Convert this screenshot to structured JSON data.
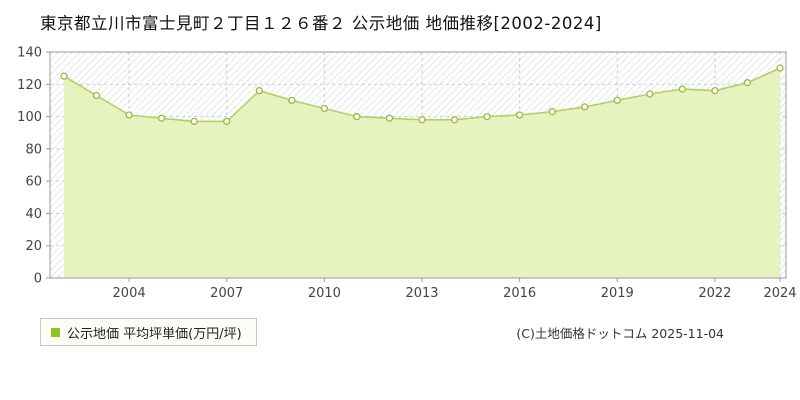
{
  "title": "東京都立川市富士見町２丁目１２６番２ 公示地価 地価推移[2002-2024]",
  "legend": {
    "label": "公示地価 平均坪単価(万円/坪)"
  },
  "footer": {
    "copyright": "(C)土地価格ドットコム 2025-11-04"
  },
  "colors": {
    "area_fill": "#e6f2ba",
    "line": "#b3cf68",
    "marker_fill": "#fffdf0",
    "marker_stroke": "#97ba4b",
    "legend_marker": "#8fc31f",
    "grid": "#cccccc",
    "axis_border": "#999999",
    "hatch": "#e7e7e7",
    "tick_text": "#444444"
  },
  "chart_data": {
    "type": "area",
    "title": "東京都立川市富士見町２丁目１２６番２ 公示地価 地価推移[2002-2024]",
    "xlabel": "",
    "ylabel": "平均坪単価(万円/坪)",
    "ylim": [
      0,
      140
    ],
    "grid": true,
    "legend_position": "bottom-left",
    "x": [
      2002,
      2003,
      2004,
      2005,
      2006,
      2007,
      2008,
      2009,
      2010,
      2011,
      2012,
      2013,
      2014,
      2015,
      2016,
      2017,
      2018,
      2019,
      2020,
      2021,
      2022,
      2023,
      2024
    ],
    "values": [
      125,
      113,
      101,
      99,
      97,
      97,
      116,
      110,
      105,
      100,
      99,
      98,
      98,
      100,
      101,
      103,
      106,
      110,
      114,
      117,
      116,
      121,
      130
    ],
    "series_name": "公示地価 平均坪単価(万円/坪)",
    "y_ticks": [
      0,
      20,
      40,
      60,
      80,
      100,
      120,
      140
    ],
    "x_tick_labels": [
      2004,
      2007,
      2010,
      2013,
      2016,
      2019,
      2022,
      2024
    ]
  }
}
